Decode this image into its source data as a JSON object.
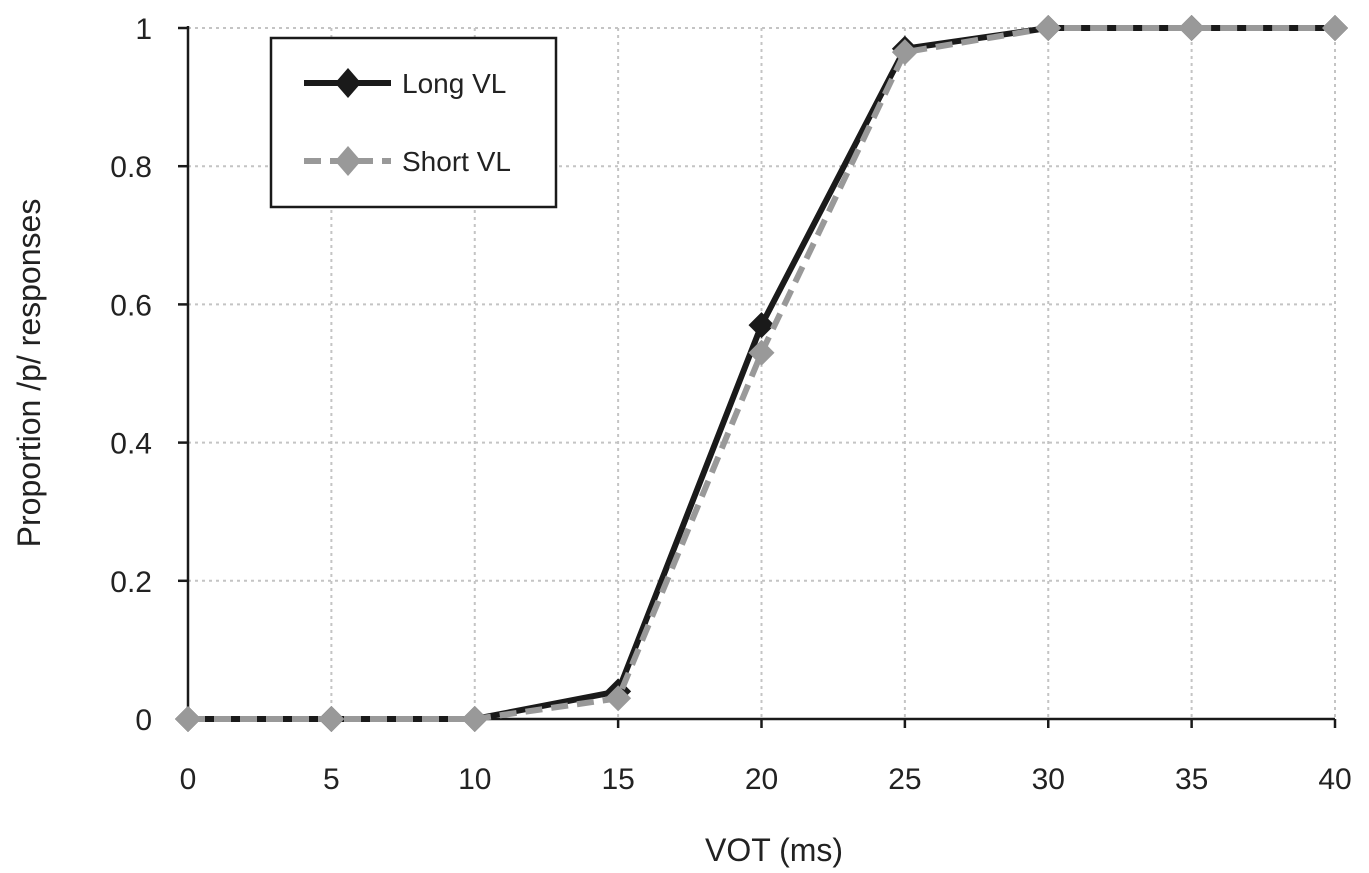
{
  "chart_data": {
    "type": "line",
    "title": "",
    "xlabel": "VOT (ms)",
    "ylabel": "Proportion /p/ responses",
    "x": [
      0,
      5,
      10,
      15,
      20,
      25,
      30,
      35,
      40
    ],
    "xlim": [
      0,
      40
    ],
    "ylim": [
      0,
      1
    ],
    "xticks": [
      "0",
      "5",
      "10",
      "15",
      "20",
      "25",
      "30",
      "35",
      "40"
    ],
    "yticks": [
      "0",
      "0.2",
      "0.4",
      "0.6",
      "0.8",
      "1"
    ],
    "grid": true,
    "legend_position": "top-left",
    "series": [
      {
        "name": "Long VL",
        "values": [
          0,
          0,
          0,
          0.04,
          0.57,
          0.97,
          1,
          1,
          1
        ],
        "color": "#1a1a1a",
        "line_style": "solid",
        "marker": "diamond-icon"
      },
      {
        "name": "Short VL",
        "values": [
          0,
          0,
          0,
          0.03,
          0.53,
          0.965,
          1,
          1,
          1
        ],
        "color": "#999999",
        "line_style": "dashed",
        "marker": "diamond-icon"
      }
    ]
  }
}
